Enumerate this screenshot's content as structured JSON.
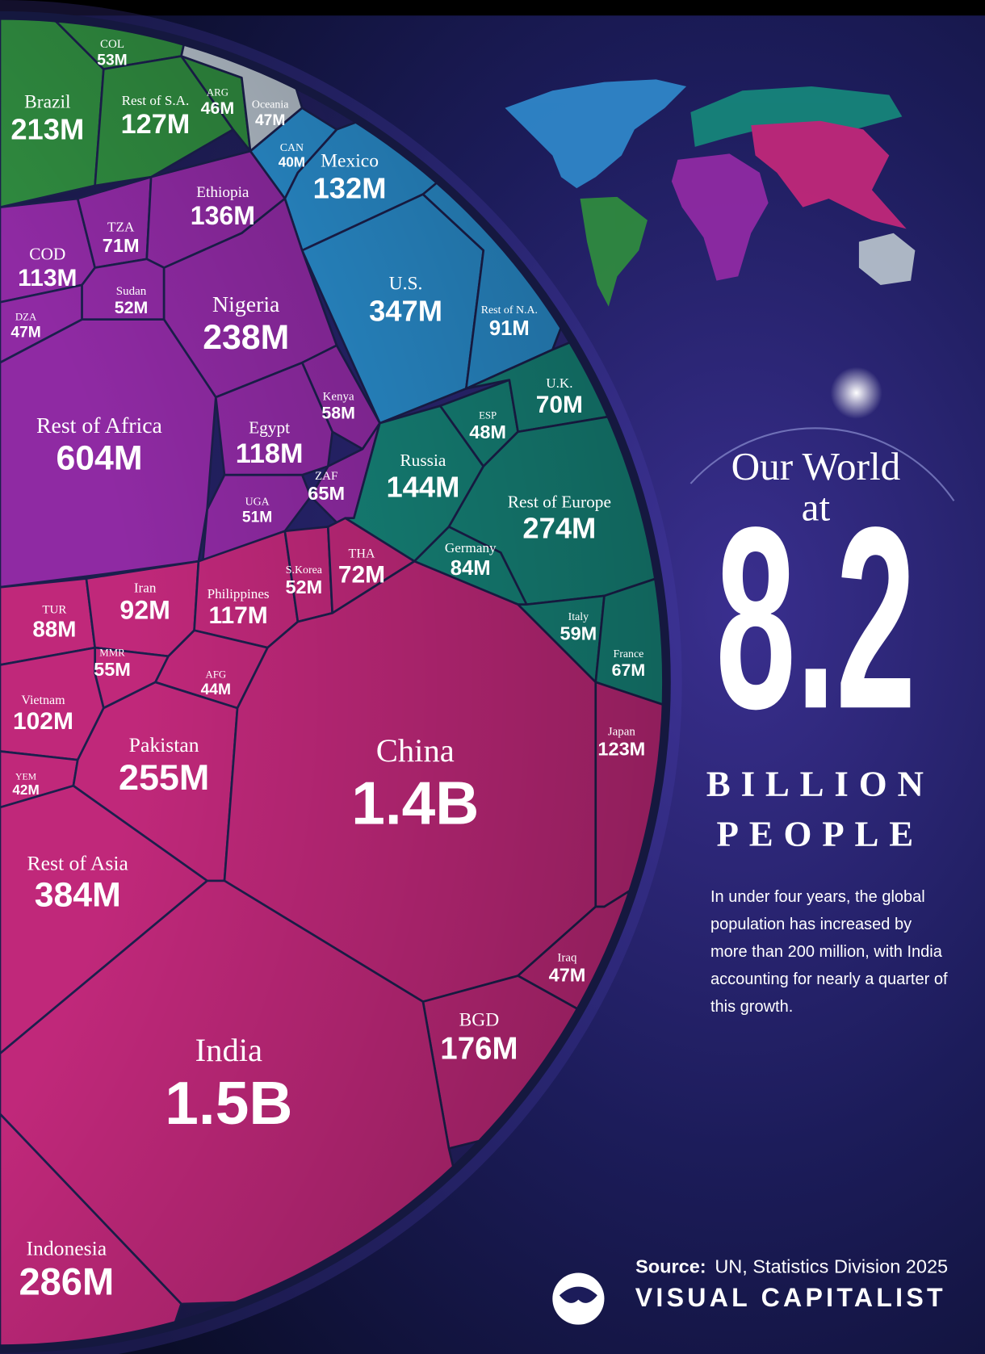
{
  "chart_data": {
    "type": "voronoi-treemap",
    "title": [
      "Our World",
      "at"
    ],
    "total": 8.2,
    "subtitle": [
      "BILLION",
      "PEOPLE"
    ],
    "description": "In under four years, the global population has increased by more than 200 million, with India accounting for nearly a quarter of this growth.",
    "source_label": "Source:",
    "source": "UN, Statistics Division 2025",
    "brand": "VISUAL CAPITALIST",
    "categories": [
      "Brazil",
      "COL",
      "Rest of S.A.",
      "ARG",
      "Oceania",
      "CAN",
      "Mexico",
      "U.S.",
      "Rest of N.A.",
      "COD",
      "TZA",
      "Ethiopia",
      "DZA",
      "Sudan",
      "Nigeria",
      "Rest of Africa",
      "Kenya",
      "Egypt",
      "ZAF",
      "UGA",
      "Russia",
      "ESP",
      "U.K.",
      "Rest of Europe",
      "Germany",
      "Italy",
      "France",
      "TUR",
      "Iran",
      "Philippines",
      "S.Korea",
      "THA",
      "MMR",
      "AFG",
      "Vietnam",
      "YEM",
      "Pakistan",
      "Rest of Asia",
      "China",
      "Japan",
      "Iraq",
      "BGD",
      "India",
      "Indonesia"
    ],
    "values": [
      213,
      53,
      127,
      46,
      47,
      40,
      132,
      347,
      91,
      113,
      71,
      136,
      47,
      52,
      238,
      604,
      58,
      118,
      65,
      51,
      144,
      48,
      70,
      274,
      84,
      59,
      67,
      88,
      92,
      117,
      52,
      72,
      55,
      44,
      102,
      42,
      255,
      384,
      1400,
      123,
      47,
      176,
      1500,
      286
    ],
    "value_labels": [
      "213M",
      "53M",
      "127M",
      "46M",
      "47M",
      "40M",
      "132M",
      "347M",
      "91M",
      "113M",
      "71M",
      "136M",
      "47M",
      "52M",
      "238M",
      "604M",
      "58M",
      "118M",
      "65M",
      "51M",
      "144M",
      "48M",
      "70M",
      "274M",
      "84M",
      "59M",
      "67M",
      "88M",
      "92M",
      "117M",
      "52M",
      "72M",
      "55M",
      "44M",
      "102M",
      "42M",
      "255M",
      "384M",
      "1.4B",
      "123M",
      "47M",
      "176M",
      "1.5B",
      "286M"
    ],
    "colors": [
      "#2f8a3f",
      "#2f8a3f",
      "#2f8a3f",
      "#2f8a3f",
      "#b4bfca",
      "#2a8fd0",
      "#2a8fd0",
      "#2a8fd0",
      "#2a8fd0",
      "#8f2aa3",
      "#8f2aa3",
      "#8f2aa3",
      "#8f2aa3",
      "#8f2aa3",
      "#8f2aa3",
      "#8f2aa3",
      "#8f2aa3",
      "#8f2aa3",
      "#8f2aa3",
      "#8f2aa3",
      "#16857a",
      "#16857a",
      "#16857a",
      "#16857a",
      "#16857a",
      "#16857a",
      "#16857a",
      "#c0287a",
      "#c0287a",
      "#c0287a",
      "#c0287a",
      "#c0287a",
      "#c0287a",
      "#c0287a",
      "#c0287a",
      "#c0287a",
      "#c0287a",
      "#c0287a",
      "#c0287a",
      "#c0287a",
      "#c0287a",
      "#c0287a",
      "#c0287a",
      "#c0287a"
    ]
  }
}
